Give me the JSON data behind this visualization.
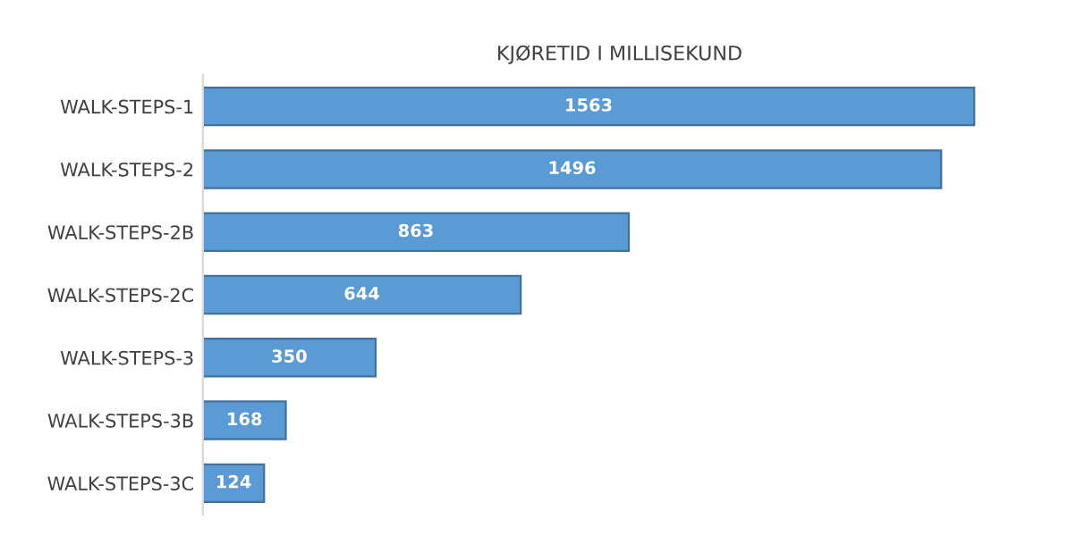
{
  "chart_data": {
    "type": "bar",
    "orientation": "horizontal",
    "title": "KJØRETID I MILLISEKUND",
    "categories": [
      "WALK-STEPS-1",
      "WALK-STEPS-2",
      "WALK-STEPS-2B",
      "WALK-STEPS-2C",
      "WALK-STEPS-3",
      "WALK-STEPS-3B",
      "WALK-STEPS-3C"
    ],
    "values": [
      1563,
      1496,
      863,
      644,
      350,
      168,
      124
    ],
    "color": "#5b9bd5",
    "data_labels": true
  }
}
